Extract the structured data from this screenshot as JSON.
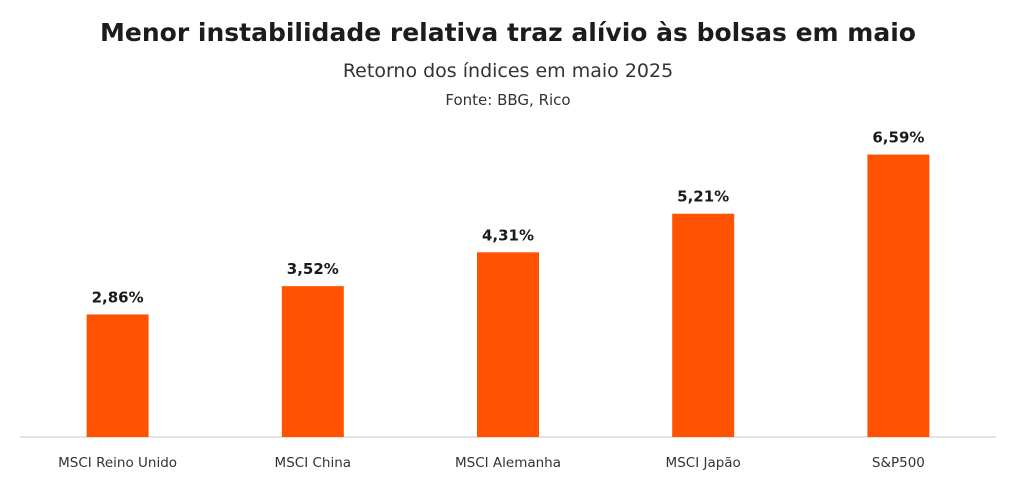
{
  "chart_data": {
    "type": "bar",
    "title": "Menor instabilidade relativa traz alívio às bolsas em maio",
    "subtitle": "Retorno dos índices em maio 2025",
    "source": "Fonte: BBG, Rico",
    "categories": [
      "MSCI Reino Unido",
      "MSCI China",
      "MSCI Alemanha",
      "MSCI Japão",
      "S&P500"
    ],
    "values": [
      2.86,
      3.52,
      4.31,
      5.21,
      6.59
    ],
    "data_labels": [
      "2,86%",
      "3,52%",
      "4,31%",
      "5,21%",
      "6,59%"
    ],
    "ylim": [
      0,
      7.7
    ],
    "grid": false,
    "legend": "none",
    "bar_color": "#FF5200",
    "axis_color": "#d9d9d9"
  }
}
